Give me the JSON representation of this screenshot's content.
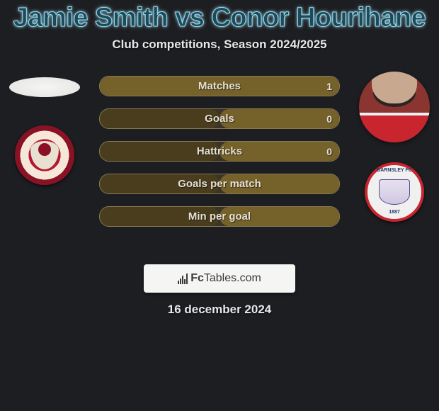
{
  "title": "Jamie Smith vs Conor Hourihane",
  "subtitle": "Club competitions, Season 2024/2025",
  "date": "16 december 2024",
  "watermark": {
    "brand_a": "Fc",
    "brand_b": "Tables",
    "brand_c": ".com"
  },
  "left": {
    "player_name": "Jamie Smith",
    "club_name": "Leyton Orient",
    "badge_text_top": "",
    "badge_colors": {
      "outer": "#8a1224",
      "ring": "#f5e8d8",
      "inner": "#b5182e"
    }
  },
  "right": {
    "player_name": "Conor Hourihane",
    "club_name": "Barnsley",
    "badge_text_top": "BARNSLEY FC",
    "badge_text_bot": "1887",
    "badge_colors": {
      "border": "#c8252f",
      "bg": "#f0f0f0"
    }
  },
  "stats": {
    "type": "horizontal-stat-bars",
    "bar_bg": "#3a3528",
    "bar_border": "#8a7a50",
    "fill_left_color": "#4a3d1e",
    "fill_right_color": "#75612a",
    "label_color": "#e5e0d5",
    "label_fontsize": 15,
    "rows": [
      {
        "label": "Matches",
        "left_val": "",
        "right_val": "1",
        "left_pct": 0,
        "right_pct": 100
      },
      {
        "label": "Goals",
        "left_val": "",
        "right_val": "0",
        "left_pct": 50,
        "right_pct": 50
      },
      {
        "label": "Hattricks",
        "left_val": "",
        "right_val": "0",
        "left_pct": 50,
        "right_pct": 50
      },
      {
        "label": "Goals per match",
        "left_val": "",
        "right_val": "",
        "left_pct": 50,
        "right_pct": 50
      },
      {
        "label": "Min per goal",
        "left_val": "",
        "right_val": "",
        "left_pct": 50,
        "right_pct": 50
      }
    ]
  },
  "colors": {
    "page_bg": "#1d1e22",
    "title_glow": "#9dd8e8",
    "text": "#e8e8e8"
  }
}
